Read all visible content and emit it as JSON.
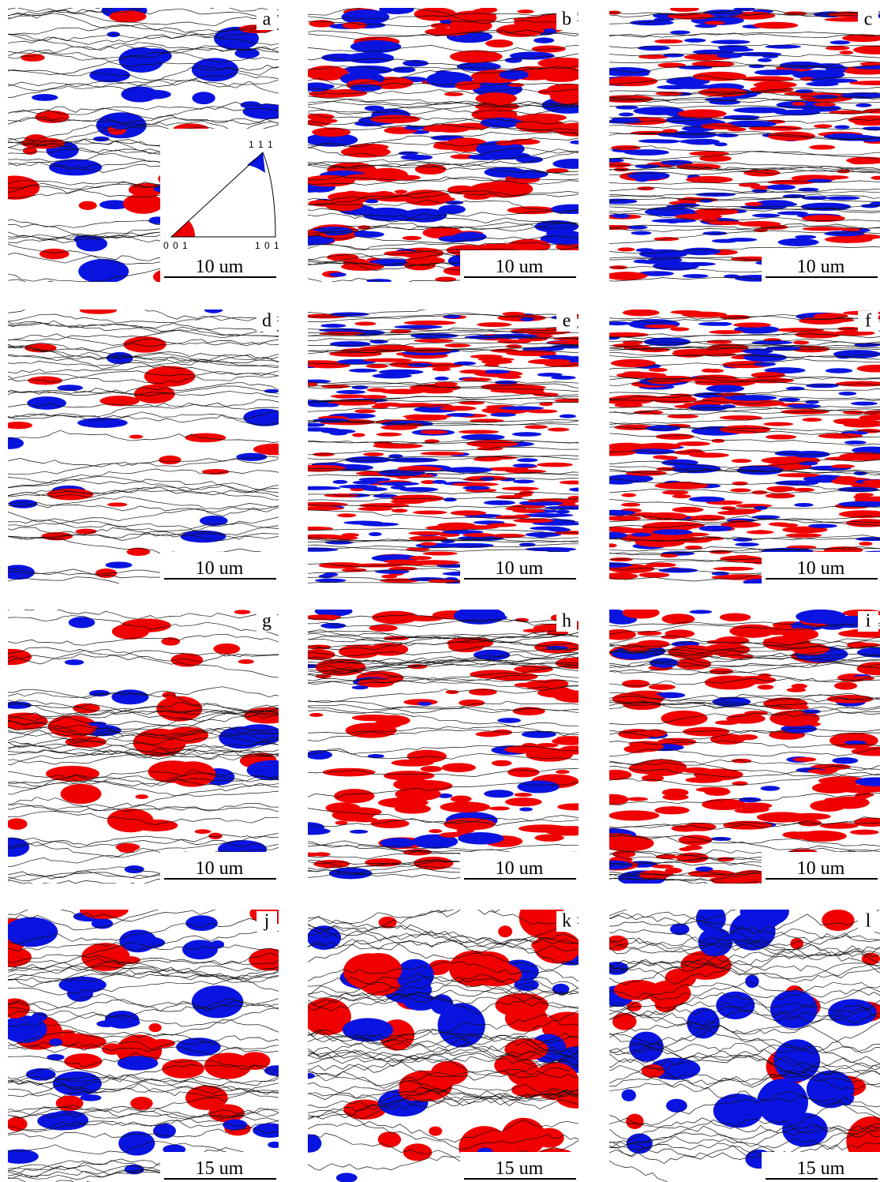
{
  "panels": [
    {
      "label": "a",
      "scale_bar": "10 um",
      "inset": {
        "top": "1 1 1",
        "left": "0 0 1",
        "right": "1 0 1"
      }
    },
    {
      "label": "b",
      "scale_bar": "10 um"
    },
    {
      "label": "c",
      "scale_bar": "10 um"
    },
    {
      "label": "d",
      "scale_bar": "10 um"
    },
    {
      "label": "e",
      "scale_bar": "10 um"
    },
    {
      "label": "f",
      "scale_bar": "10 um"
    },
    {
      "label": "g",
      "scale_bar": "10 um"
    },
    {
      "label": "h",
      "scale_bar": "10 um"
    },
    {
      "label": "i",
      "scale_bar": "10 um"
    },
    {
      "label": "j",
      "scale_bar": "15 um"
    },
    {
      "label": "k",
      "scale_bar": "15 um"
    },
    {
      "label": "l",
      "scale_bar": "15 um"
    }
  ]
}
